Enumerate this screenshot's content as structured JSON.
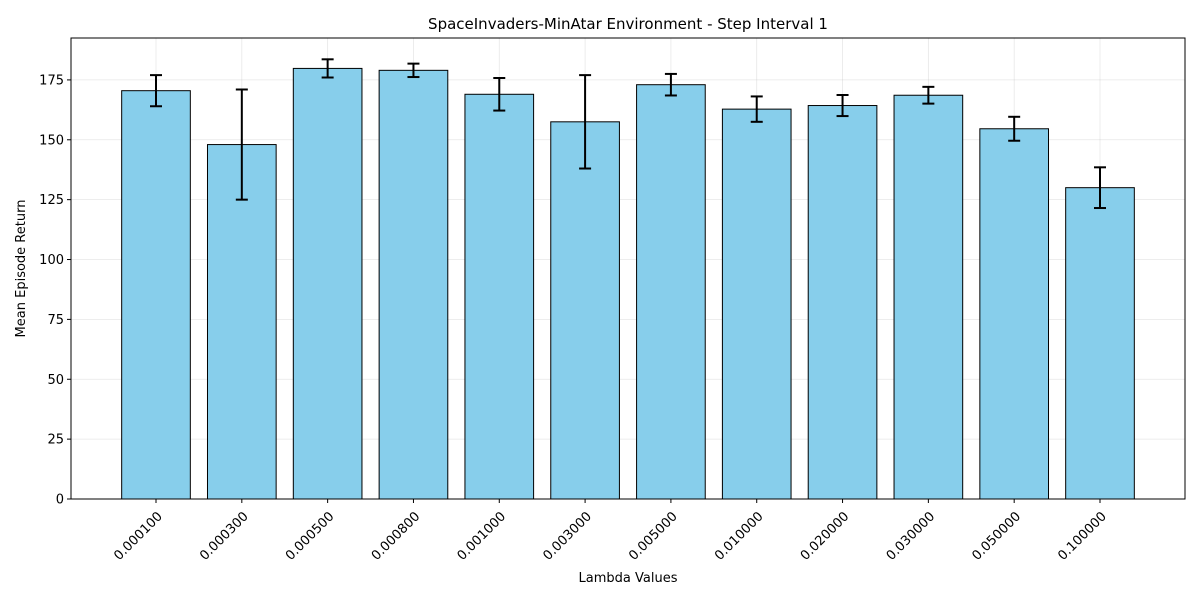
{
  "chart_data": {
    "type": "bar",
    "title": "SpaceInvaders-MinAtar Environment - Step Interval 1",
    "xlabel": "Lambda Values",
    "ylabel": "Mean Episode Return",
    "categories": [
      "0.000100",
      "0.000300",
      "0.000500",
      "0.000800",
      "0.001000",
      "0.003000",
      "0.005000",
      "0.010000",
      "0.020000",
      "0.030000",
      "0.050000",
      "0.100000"
    ],
    "values": [
      170.5,
      148.0,
      179.8,
      179.0,
      169.0,
      157.5,
      173.0,
      162.8,
      164.3,
      168.6,
      154.6,
      130.0
    ],
    "errors": [
      6.5,
      23.0,
      3.8,
      2.8,
      6.8,
      19.5,
      4.5,
      5.3,
      4.4,
      3.5,
      5.0,
      8.5
    ],
    "ylim": [
      0,
      192.5
    ],
    "yticks": [
      0,
      25,
      50,
      75,
      100,
      125,
      150,
      175
    ],
    "grid": true,
    "bar_color": "#87ceeb",
    "edge_color": "#000000"
  }
}
